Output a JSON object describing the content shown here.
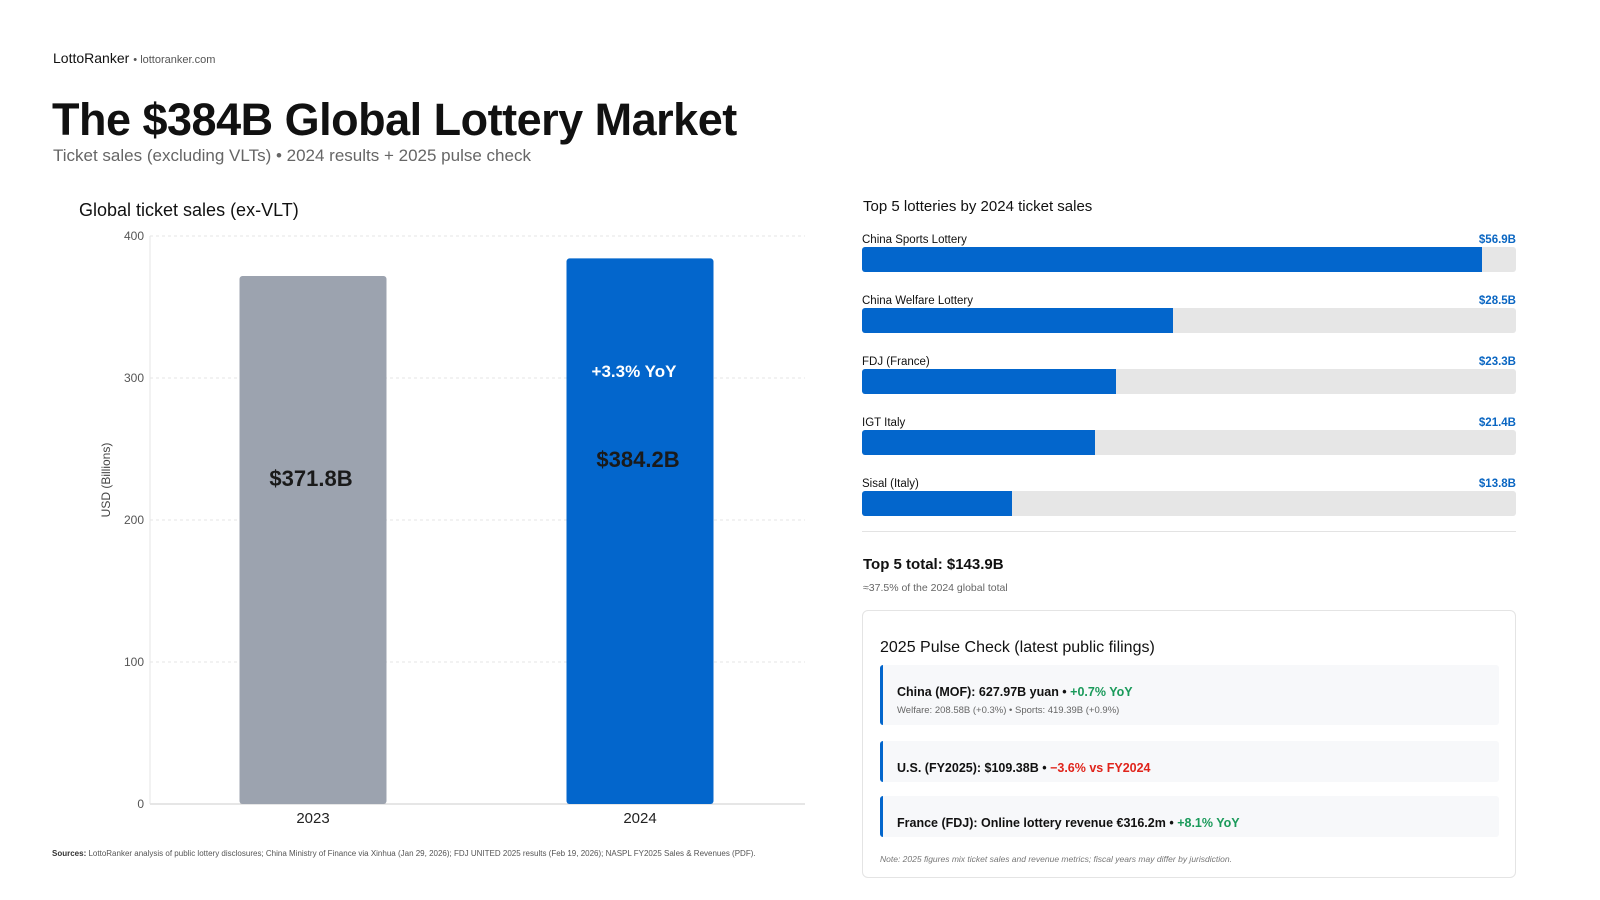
{
  "header": {
    "brand": "LottoRanker",
    "site": "• lottoranker.com",
    "title": "The $384B Global Lottery Market",
    "subtitle": "Ticket sales (excluding VLTs) • 2024 results + 2025 pulse check"
  },
  "chart_data": {
    "type": "bar",
    "title": "Global ticket sales (ex-VLT)",
    "ylabel": "USD (Billions)",
    "xlabel": "",
    "categories": [
      "2023",
      "2024"
    ],
    "values": [
      371.8,
      384.2
    ],
    "data_labels": [
      "$371.8B",
      "$384.2B"
    ],
    "annotation": "+3.3% YoY",
    "ylim": [
      0,
      400
    ],
    "yticks": [
      0,
      100,
      200,
      300,
      400
    ],
    "grid": true,
    "colors": [
      "#9ca3af",
      "#0366cc"
    ]
  },
  "sources": {
    "label": "Sources:",
    "text": "LottoRanker analysis of public lottery disclosures; China Ministry of Finance via Xinhua (Jan 29, 2026); FDJ UNITED 2025 results (Feb 19, 2026); NASPL FY2025 Sales & Revenues (PDF)."
  },
  "top5": {
    "title": "Top 5 lotteries by 2024 ticket sales",
    "scale_max": 60,
    "items": [
      {
        "name": "China Sports Lottery",
        "label": "$56.9B",
        "value": 56.9
      },
      {
        "name": "China Welfare Lottery",
        "label": "$28.5B",
        "value": 28.5
      },
      {
        "name": "FDJ (France)",
        "label": "$23.3B",
        "value": 23.3
      },
      {
        "name": "IGT Italy",
        "label": "$21.4B",
        "value": 21.4
      },
      {
        "name": "Sisal (Italy)",
        "label": "$13.8B",
        "value": 13.8
      }
    ],
    "total": "Top 5 total: $143.9B",
    "total_sub": "≈37.5% of the 2024 global total"
  },
  "pulse": {
    "title": "2025 Pulse Check (latest public filings)",
    "items": [
      {
        "main": "China (MOF): 627.97B yuan •",
        "change": "+0.7% YoY",
        "sub": "Welfare: 208.58B (+0.3%) • Sports: 419.39B (+0.9%)"
      },
      {
        "main": "U.S. (FY2025): $109.38B •",
        "change": "−3.6% vs FY2024"
      },
      {
        "main": "France (FDJ): Online lottery revenue €316.2m •",
        "change": "+8.1% YoY"
      }
    ],
    "note": "Note: 2025 figures mix ticket sales and revenue metrics; fiscal years may differ by jurisdiction."
  }
}
